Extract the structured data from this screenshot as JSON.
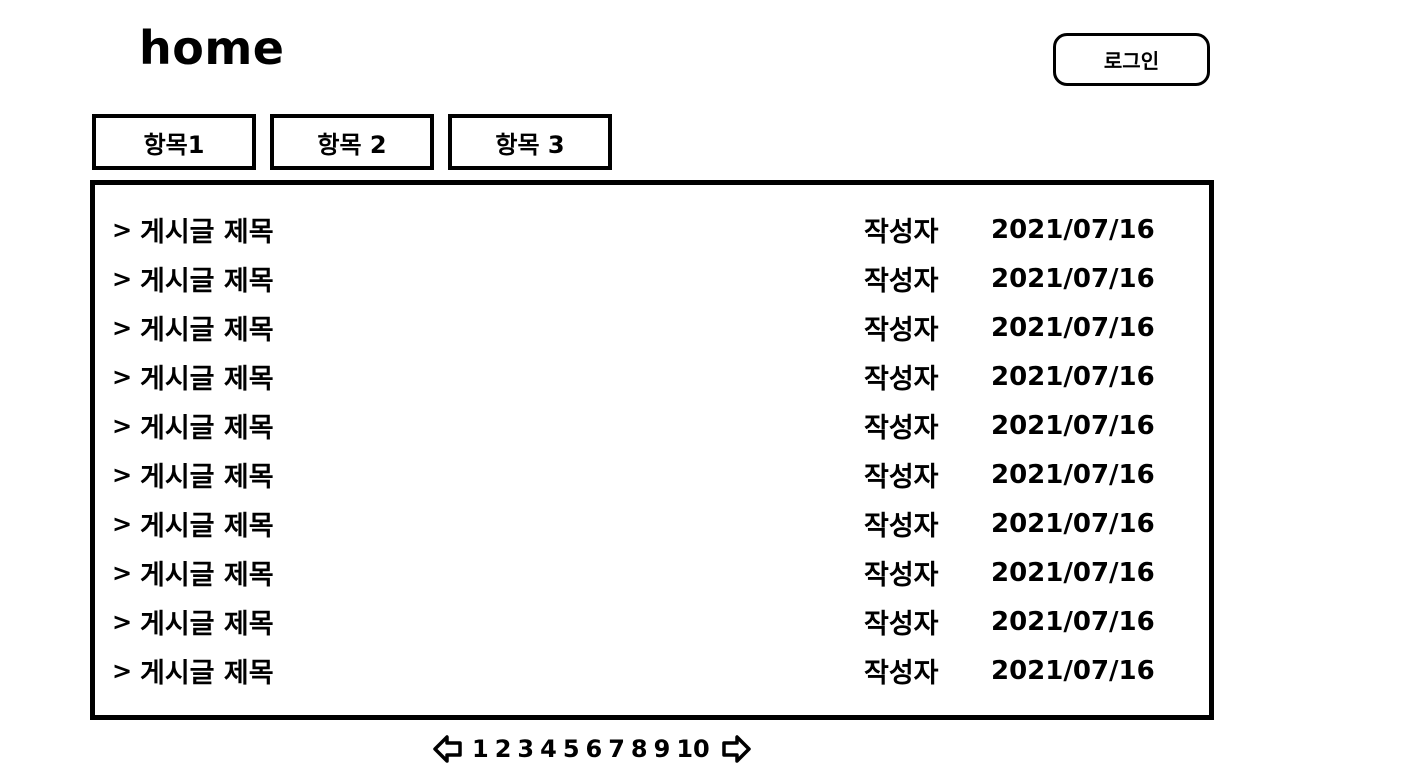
{
  "header": {
    "title": "home",
    "login_label": "로그인"
  },
  "tabs": [
    {
      "label": "항목1"
    },
    {
      "label": "항목 2"
    },
    {
      "label": "항목 3"
    }
  ],
  "posts": [
    {
      "marker": ">",
      "title": "게시글 제목",
      "author": "작성자",
      "date": "2021/07/16"
    },
    {
      "marker": ">",
      "title": "게시글 제목",
      "author": "작성자",
      "date": "2021/07/16"
    },
    {
      "marker": ">",
      "title": "게시글 제목",
      "author": "작성자",
      "date": "2021/07/16"
    },
    {
      "marker": ">",
      "title": "게시글 제목",
      "author": "작성자",
      "date": "2021/07/16"
    },
    {
      "marker": ">",
      "title": "게시글 제목",
      "author": "작성자",
      "date": "2021/07/16"
    },
    {
      "marker": ">",
      "title": "게시글 제목",
      "author": "작성자",
      "date": "2021/07/16"
    },
    {
      "marker": ">",
      "title": "게시글 제목",
      "author": "작성자",
      "date": "2021/07/16"
    },
    {
      "marker": ">",
      "title": "게시글 제목",
      "author": "작성자",
      "date": "2021/07/16"
    },
    {
      "marker": ">",
      "title": "게시글 제목",
      "author": "작성자",
      "date": "2021/07/16"
    },
    {
      "marker": ">",
      "title": "게시글 제목",
      "author": "작성자",
      "date": "2021/07/16"
    }
  ],
  "pagination": {
    "prev_icon": "arrow-left-icon",
    "next_icon": "arrow-right-icon",
    "pages": [
      "1",
      "2",
      "3",
      "4",
      "5",
      "6",
      "7",
      "8",
      "9",
      "10"
    ]
  }
}
